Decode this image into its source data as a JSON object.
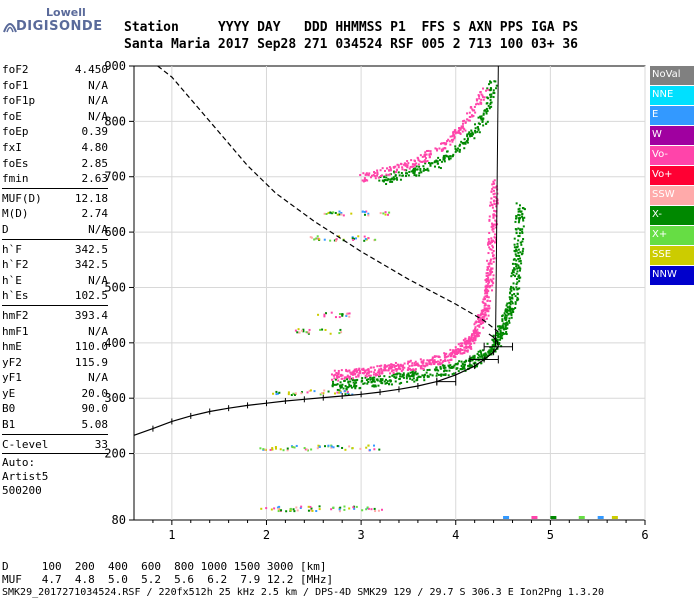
{
  "logo": {
    "line1": "Lowell",
    "line2": "DIGISONDE"
  },
  "header": {
    "labels": [
      "Station",
      "YYYY",
      "DAY",
      "DDD",
      "HHMMSS",
      "P1",
      "FFS",
      "S",
      "AXN",
      "PPS",
      "IGA",
      "PS"
    ],
    "values": [
      "Santa Maria",
      "2017",
      "Sep28",
      "271",
      "034524",
      "RSF",
      "005",
      "2",
      "713",
      "100",
      "03+",
      "36"
    ]
  },
  "params_group1": [
    {
      "name": "foF2",
      "value": "4.450"
    },
    {
      "name": "foF1",
      "value": "N/A"
    },
    {
      "name": "foF1p",
      "value": "N/A"
    },
    {
      "name": "foE",
      "value": "N/A"
    },
    {
      "name": "foEp",
      "value": "0.39"
    },
    {
      "name": "fxI",
      "value": "4.80"
    },
    {
      "name": "foEs",
      "value": "2.85"
    },
    {
      "name": "fmin",
      "value": "2.63"
    }
  ],
  "params_group2": [
    {
      "name": "MUF(D)",
      "value": "12.18"
    },
    {
      "name": "M(D)",
      "value": "2.74"
    },
    {
      "name": "D",
      "value": "N/A"
    }
  ],
  "params_group3": [
    {
      "name": "h`F",
      "value": "342.5"
    },
    {
      "name": "h`F2",
      "value": "342.5"
    },
    {
      "name": "h`E",
      "value": "N/A"
    },
    {
      "name": "h`Es",
      "value": "102.5"
    }
  ],
  "params_group4": [
    {
      "name": "hmF2",
      "value": "393.4"
    },
    {
      "name": "hmF1",
      "value": "N/A"
    },
    {
      "name": "hmE",
      "value": "110.0"
    },
    {
      "name": "yF2",
      "value": "115.9"
    },
    {
      "name": "yF1",
      "value": "N/A"
    },
    {
      "name": "yE",
      "value": "20.0"
    },
    {
      "name": "B0",
      "value": "90.0"
    },
    {
      "name": "B1",
      "value": "5.08"
    }
  ],
  "clevel": {
    "name": "C-level",
    "value": "33"
  },
  "auto": {
    "line1": "Auto:",
    "line2": "Artist5",
    "line3": "500200"
  },
  "legend": [
    {
      "label": "NoVal",
      "color": "#808080"
    },
    {
      "label": "NNE",
      "color": "#00e0ff"
    },
    {
      "label": "E",
      "color": "#3399ff"
    },
    {
      "label": "W",
      "color": "#a000a0"
    },
    {
      "label": "Vo-",
      "color": "#ff44aa"
    },
    {
      "label": "Vo+",
      "color": "#ff0033"
    },
    {
      "label": "SSW",
      "color": "#ffaaaa"
    },
    {
      "label": "X-",
      "color": "#008800"
    },
    {
      "label": "X+",
      "color": "#66dd44"
    },
    {
      "label": "SSE",
      "color": "#cccc00"
    },
    {
      "label": "NNW",
      "color": "#0000cc"
    }
  ],
  "footer": {
    "line1": "D     100  200  400  600  800 1000 1500 3000 [km]",
    "line2": "MUF   4.7  4.8  5.0  5.2  5.6  6.2  7.9 12.2 [MHz]",
    "line3": "SMK29_2017271034524.RSF / 220fx512h 25 kHz 2.5 km / DPS-4D SMK29 129 / 29.7 S 306.3 E Ion2Png 1.3.20"
  },
  "chart_data": {
    "type": "scatter",
    "xlim": [
      0.6,
      6.0
    ],
    "ylim": [
      80,
      900
    ],
    "xticks": [
      1,
      2,
      3,
      4,
      5,
      6
    ],
    "yticks": [
      80,
      200,
      300,
      400,
      500,
      600,
      700,
      800,
      900
    ],
    "grid": true,
    "profile": {
      "freq": [
        0.6,
        0.8,
        1.0,
        1.2,
        1.4,
        1.6,
        1.8,
        2.0,
        2.2,
        2.4,
        2.6,
        2.8,
        3.0,
        3.2,
        3.4,
        3.6,
        3.8,
        4.0,
        4.2,
        4.3,
        4.4,
        4.45,
        4.44,
        4.4,
        4.35
      ],
      "height": [
        233,
        245,
        258,
        268,
        276,
        282,
        287,
        291,
        295,
        298,
        301,
        304,
        307,
        311,
        316,
        322,
        330,
        342,
        358,
        370,
        383,
        393,
        402,
        410,
        416
      ]
    },
    "error_bars": [
      {
        "x": 4.45,
        "y": 393,
        "xerr": 0.15
      },
      {
        "x": 4.3,
        "y": 370,
        "xerr": 0.15
      },
      {
        "x": 3.9,
        "y": 330,
        "xerr": 0.1
      }
    ],
    "extrapolated_profile": {
      "freq": [
        0.85,
        1.0,
        1.2,
        1.5,
        1.8,
        2.1,
        2.5,
        3.0,
        3.5,
        4.0,
        4.3,
        4.45
      ],
      "height": [
        900,
        880,
        840,
        780,
        720,
        670,
        620,
        565,
        515,
        470,
        440,
        420
      ]
    },
    "trace_f2_o": {
      "freq": [
        2.7,
        3.0,
        3.3,
        3.6,
        3.9,
        4.1,
        4.2,
        4.3,
        4.35,
        4.38,
        4.4
      ],
      "height": [
        342,
        348,
        355,
        362,
        375,
        395,
        420,
        460,
        520,
        600,
        700
      ]
    },
    "trace_f2_x": {
      "freq": [
        2.7,
        3.1,
        3.5,
        3.9,
        4.2,
        4.4,
        4.5,
        4.6,
        4.65,
        4.68
      ],
      "height": [
        325,
        330,
        340,
        352,
        368,
        395,
        430,
        480,
        560,
        650
      ]
    },
    "es_traces": [
      {
        "x0": 1.9,
        "x1": 3.2,
        "y": 212
      },
      {
        "x0": 1.9,
        "x1": 3.3,
        "y": 102
      },
      {
        "x0": 2.0,
        "x1": 2.9,
        "y": 312
      },
      {
        "x0": 2.3,
        "x1": 2.8,
        "y": 422
      },
      {
        "x0": 2.5,
        "x1": 2.9,
        "y": 452
      },
      {
        "x0": 2.4,
        "x1": 3.2,
        "y": 590
      },
      {
        "x0": 2.6,
        "x1": 3.3,
        "y": 635
      }
    ],
    "multihop_o": {
      "freq": [
        3.0,
        3.3,
        3.6,
        3.9,
        4.1,
        4.3
      ],
      "height": [
        700,
        712,
        730,
        760,
        800,
        860
      ]
    },
    "multihop_x": {
      "freq": [
        3.2,
        3.5,
        3.8,
        4.1,
        4.3,
        4.4
      ],
      "height": [
        695,
        708,
        725,
        765,
        810,
        880
      ]
    },
    "bottom_noise": [
      {
        "x": 4.5,
        "color": "#3399ff"
      },
      {
        "x": 4.8,
        "color": "#ff44aa"
      },
      {
        "x": 5.0,
        "color": "#008800"
      },
      {
        "x": 5.3,
        "color": "#66dd44"
      },
      {
        "x": 5.5,
        "color": "#3399ff"
      },
      {
        "x": 5.65,
        "color": "#cccc00"
      }
    ]
  }
}
